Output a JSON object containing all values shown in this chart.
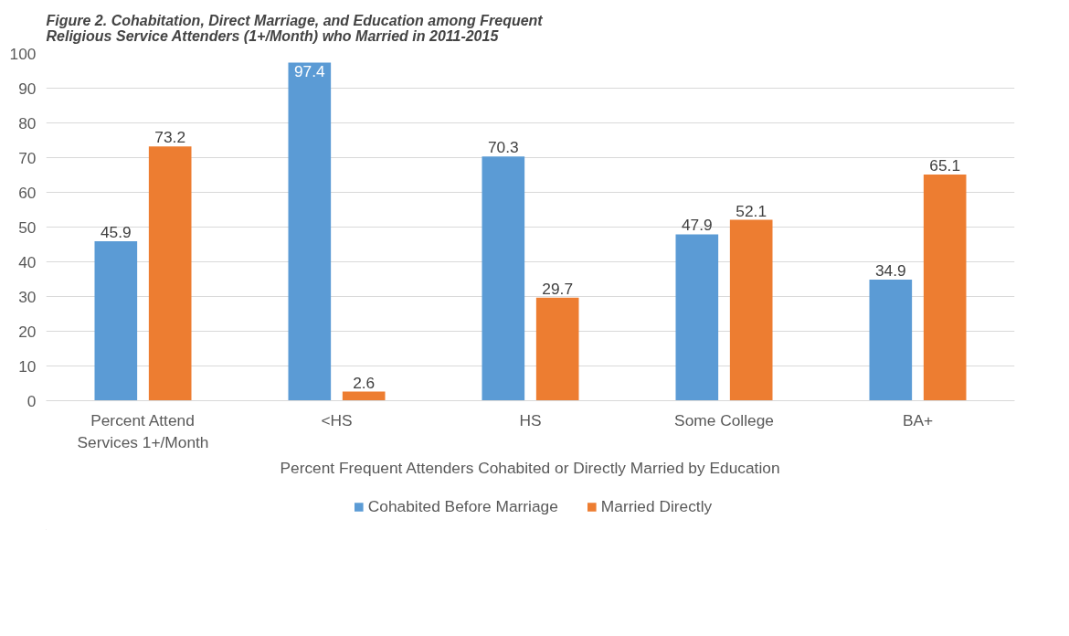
{
  "chart_data": {
    "type": "bar",
    "title": "Figure 2. Cohabitation, Direct Marriage, and Education among Frequent Religious Service Attenders (1+/Month) who Married in 2011-2015",
    "xlabel": "Percent Frequent Attenders Cohabited or Directly Married by Education",
    "categories": [
      "Percent Attend Services 1+/Month",
      "<HS",
      "HS",
      "Some College",
      "BA+"
    ],
    "series": [
      {
        "name": "Cohabited Before Marriage",
        "color": "#5b9bd5",
        "values": [
          45.9,
          97.4,
          70.3,
          47.9,
          34.9
        ]
      },
      {
        "name": "Married Directly",
        "color": "#ed7d31",
        "values": [
          73.2,
          2.6,
          29.7,
          52.1,
          65.1
        ]
      }
    ],
    "ylim": [
      0,
      100
    ],
    "yticks": [
      0,
      10,
      20,
      30,
      40,
      50,
      60,
      70,
      80,
      90,
      100
    ],
    "grid": "y",
    "legend": "bottom",
    "data_labels": true
  }
}
